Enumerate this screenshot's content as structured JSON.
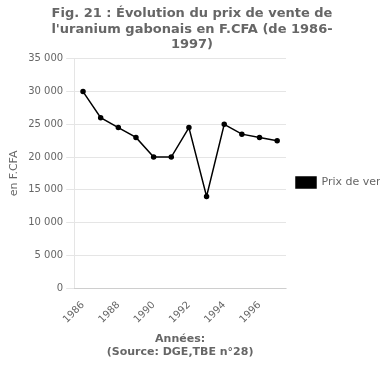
{
  "chart_data": {
    "type": "line",
    "title": [
      "Fig. 21 : Évolution du prix de vente de",
      "l'uranium gabonais en F.CFA (de 1986-",
      "1997)"
    ],
    "x_label": [
      "Années:",
      "(Source: DGE,TBE n°28)"
    ],
    "y_label": "en F.CFA",
    "x": [
      1986,
      1987,
      1988,
      1989,
      1990,
      1991,
      1992,
      1993,
      1994,
      1995,
      1996,
      1997
    ],
    "series": [
      {
        "name": "Prix de vente",
        "color": "#000000",
        "values": [
          30000,
          26000,
          24500,
          23000,
          20000,
          20000,
          24500,
          14000,
          25000,
          23500,
          23000,
          22500
        ]
      }
    ],
    "xlim": [
      1985.5,
      1997.5
    ],
    "xticks": [
      1986,
      1988,
      1990,
      1992,
      1994,
      1996
    ],
    "ylim": [
      0,
      35000
    ],
    "yticks": [
      0,
      {
        "value": 5000,
        "label": "5 000"
      },
      {
        "value": 10000,
        "label": "10 000"
      },
      {
        "value": 15000,
        "label": "15 000"
      },
      {
        "value": 20000,
        "label": "20 000"
      },
      {
        "value": 25000,
        "label": "25 000"
      },
      {
        "value": 30000,
        "label": "30 000"
      },
      {
        "value": 35000,
        "label": "35 000"
      }
    ],
    "grid": "y",
    "legend": "right"
  }
}
